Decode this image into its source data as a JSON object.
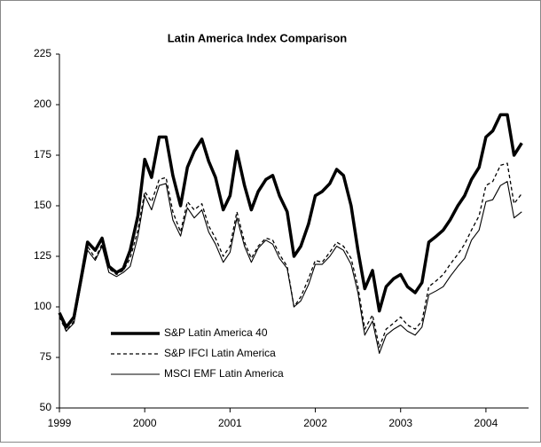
{
  "chart_data": {
    "type": "line",
    "title": "Latin America Index Comparison",
    "x": [
      1999,
      1999.08,
      1999.17,
      1999.25,
      1999.33,
      1999.42,
      1999.5,
      1999.58,
      1999.67,
      1999.75,
      1999.83,
      1999.92,
      2000,
      2000.08,
      2000.17,
      2000.25,
      2000.33,
      2000.42,
      2000.5,
      2000.58,
      2000.67,
      2000.75,
      2000.83,
      2000.92,
      2001,
      2001.08,
      2001.17,
      2001.25,
      2001.33,
      2001.42,
      2001.5,
      2001.58,
      2001.67,
      2001.75,
      2001.83,
      2001.92,
      2002,
      2002.08,
      2002.17,
      2002.25,
      2002.33,
      2002.42,
      2002.5,
      2002.58,
      2002.67,
      2002.75,
      2002.83,
      2002.92,
      2003,
      2003.08,
      2003.17,
      2003.25,
      2003.33,
      2003.42,
      2003.5,
      2003.58,
      2003.67,
      2003.75,
      2003.83,
      2003.92,
      2004,
      2004.08,
      2004.17,
      2004.25,
      2004.33,
      2004.42
    ],
    "series": [
      {
        "name": "S&P Latin America 40",
        "color": "#000000",
        "line_width": 3.5,
        "dash": "none",
        "values": [
          97,
          90,
          95,
          113,
          132,
          128,
          134,
          120,
          117,
          119,
          128,
          145,
          173,
          164,
          184,
          184,
          165,
          150,
          169,
          177,
          183,
          172,
          164,
          148,
          155,
          177,
          160,
          148,
          157,
          163,
          165,
          155,
          147,
          125,
          130,
          141,
          155,
          157,
          161,
          168,
          165,
          150,
          128,
          109,
          118,
          98,
          110,
          114,
          116,
          110,
          107,
          112,
          132,
          135,
          138,
          143,
          150,
          155,
          163,
          169,
          184,
          187,
          195,
          195,
          175,
          181
        ]
      },
      {
        "name": "S&P IFCI Latin America",
        "color": "#000000",
        "line_width": 1.3,
        "dash": "4 3",
        "values": [
          95,
          88,
          93,
          112,
          130,
          124,
          131,
          119,
          116,
          118,
          124,
          138,
          157,
          152,
          163,
          164,
          147,
          137,
          152,
          148,
          151,
          140,
          134,
          125,
          130,
          147,
          132,
          124,
          130,
          134,
          133,
          126,
          120,
          100,
          105,
          114,
          123,
          122,
          127,
          132,
          130,
          124,
          110,
          89,
          96,
          80,
          89,
          92,
          95,
          91,
          89,
          93,
          110,
          113,
          116,
          121,
          126,
          131,
          138,
          145,
          160,
          162,
          170,
          171,
          151,
          156
        ]
      },
      {
        "name": "MSCI EMF Latin America",
        "color": "#000000",
        "line_width": 1.1,
        "dash": "none",
        "values": [
          96,
          88,
          92,
          110,
          128,
          123,
          130,
          117,
          115,
          117,
          120,
          135,
          155,
          148,
          160,
          161,
          143,
          135,
          149,
          144,
          148,
          137,
          131,
          122,
          127,
          144,
          130,
          122,
          129,
          133,
          131,
          124,
          119,
          100,
          103,
          111,
          121,
          121,
          125,
          130,
          128,
          121,
          107,
          86,
          93,
          77,
          86,
          89,
          91,
          88,
          86,
          90,
          106,
          108,
          110,
          115,
          120,
          124,
          133,
          138,
          152,
          153,
          160,
          162,
          144,
          147
        ]
      }
    ],
    "xlim": [
      1999,
      2004.5
    ],
    "xticks": [
      1999,
      2000,
      2001,
      2002,
      2003,
      2004
    ],
    "ylim": [
      50,
      225
    ],
    "yticks": [
      50,
      75,
      100,
      125,
      150,
      175,
      200,
      225
    ],
    "grid": false,
    "legend": "lower left"
  }
}
